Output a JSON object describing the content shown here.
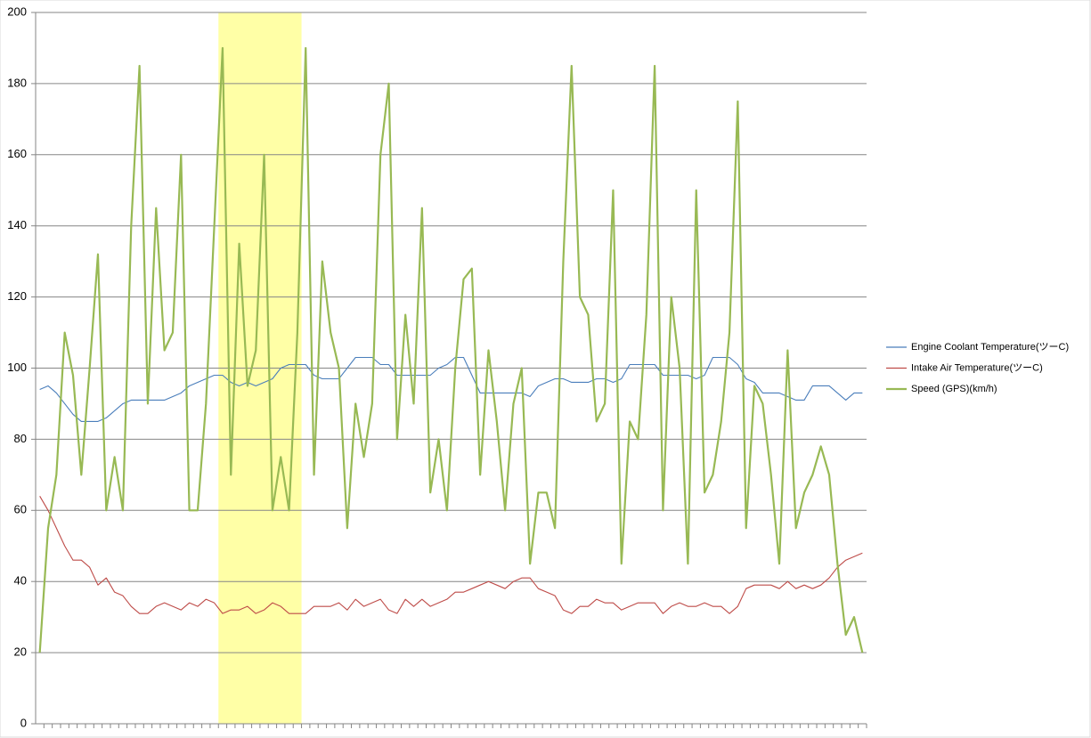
{
  "chart_data": {
    "type": "line",
    "categories": [
      null,
      null,
      null,
      null,
      null,
      null,
      null,
      null,
      null,
      null,
      null,
      null,
      null,
      null,
      null,
      null,
      null,
      null,
      null,
      null,
      null,
      null,
      null,
      null,
      null,
      null,
      null,
      null,
      null,
      null,
      null,
      null,
      null,
      null,
      null,
      null,
      null,
      null,
      null,
      null,
      null,
      null,
      null,
      null,
      null,
      null,
      null,
      null,
      null,
      null,
      null,
      null,
      null,
      null,
      null,
      null,
      null,
      null,
      null,
      null,
      null,
      null,
      null,
      null,
      null,
      null,
      null,
      null,
      null,
      null,
      null,
      null,
      null,
      null,
      null,
      null,
      null,
      null,
      null,
      null,
      null,
      null,
      null,
      null,
      null,
      null,
      null,
      null,
      null,
      null,
      null,
      null,
      null,
      null,
      null,
      null,
      null,
      null,
      null,
      null
    ],
    "series": [
      {
        "name": "Engine Coolant Temperature(ツーC)",
        "color": "#4a7ebb",
        "values": [
          94,
          95,
          93,
          90,
          87,
          85,
          85,
          85,
          86,
          88,
          90,
          91,
          91,
          91,
          91,
          91,
          92,
          93,
          95,
          96,
          97,
          98,
          98,
          96,
          95,
          96,
          95,
          96,
          97,
          100,
          101,
          101,
          101,
          98,
          97,
          97,
          97,
          100,
          103,
          103,
          103,
          101,
          101,
          98,
          98,
          98,
          98,
          98,
          100,
          101,
          103,
          103,
          98,
          93,
          93,
          93,
          93,
          93,
          93,
          92,
          95,
          96,
          97,
          97,
          96,
          96,
          96,
          97,
          97,
          96,
          97,
          101,
          101,
          101,
          101,
          98,
          98,
          98,
          98,
          97,
          98,
          103,
          103,
          103,
          101,
          97,
          96,
          93,
          93,
          93,
          92,
          91,
          91,
          95,
          95,
          95,
          93,
          91,
          93,
          93
        ]
      },
      {
        "name": "Intake Air Temperature(ツーC)",
        "color": "#be4b48",
        "values": [
          64,
          60,
          55,
          50,
          46,
          46,
          44,
          39,
          41,
          37,
          36,
          33,
          31,
          31,
          33,
          34,
          33,
          32,
          34,
          33,
          35,
          34,
          31,
          32,
          32,
          33,
          31,
          32,
          34,
          33,
          31,
          31,
          31,
          33,
          33,
          33,
          34,
          32,
          35,
          33,
          34,
          35,
          32,
          31,
          35,
          33,
          35,
          33,
          34,
          35,
          37,
          37,
          38,
          39,
          40,
          39,
          38,
          40,
          41,
          41,
          38,
          37,
          36,
          32,
          31,
          33,
          33,
          35,
          34,
          34,
          32,
          33,
          34,
          34,
          34,
          31,
          33,
          34,
          33,
          33,
          34,
          33,
          33,
          31,
          33,
          38,
          39,
          39,
          39,
          38,
          40,
          38,
          39,
          38,
          39,
          41,
          44,
          46,
          47,
          48
        ]
      },
      {
        "name": "Speed (GPS)(km/h)",
        "color": "#98b954",
        "values": [
          20,
          55,
          70,
          110,
          98,
          70,
          100,
          132,
          60,
          75,
          60,
          140,
          185,
          90,
          145,
          105,
          110,
          160,
          60,
          60,
          90,
          140,
          190,
          70,
          135,
          95,
          105,
          160,
          60,
          75,
          60,
          110,
          190,
          70,
          130,
          110,
          100,
          55,
          90,
          75,
          90,
          160,
          180,
          80,
          115,
          90,
          145,
          65,
          80,
          60,
          100,
          125,
          128,
          70,
          105,
          85,
          60,
          90,
          100,
          45,
          65,
          65,
          55,
          130,
          185,
          120,
          115,
          85,
          90,
          150,
          45,
          85,
          80,
          115,
          185,
          60,
          120,
          100,
          45,
          150,
          65,
          70,
          85,
          110,
          175,
          55,
          95,
          90,
          70,
          45,
          105,
          55,
          65,
          70,
          78,
          70,
          45,
          25,
          30,
          20
        ]
      }
    ],
    "ylim": [
      0,
      200
    ],
    "yticks": [
      0,
      20,
      40,
      60,
      80,
      100,
      120,
      140,
      160,
      180,
      200
    ],
    "grid": true,
    "highlight": {
      "from": 22,
      "to": 31,
      "color": "#ffffa6"
    },
    "legend": "right"
  }
}
